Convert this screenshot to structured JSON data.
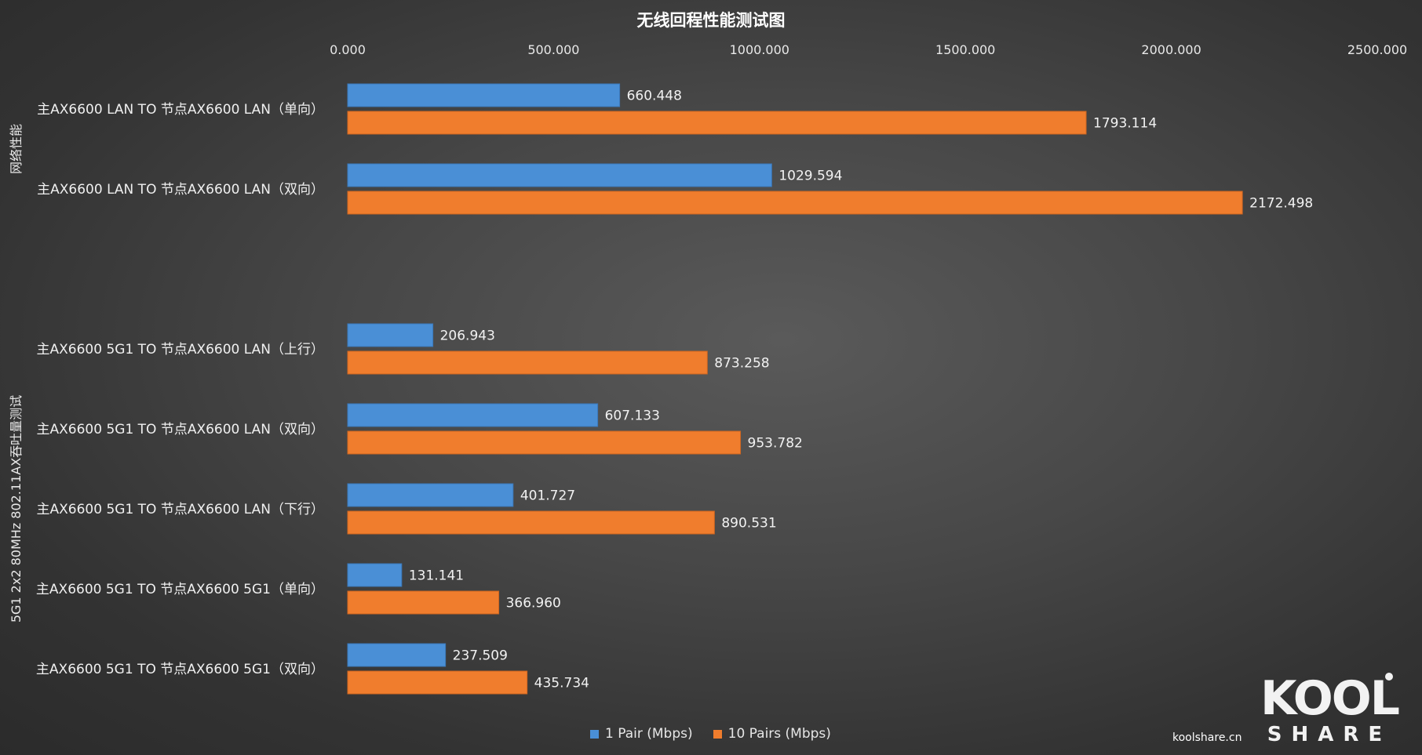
{
  "chart_data": {
    "type": "bar",
    "orientation": "horizontal",
    "title": "无线回程性能测试图",
    "xlim": [
      0,
      2500
    ],
    "x_ticks": [
      "0.000",
      "500.000",
      "1000.000",
      "1500.000",
      "2000.000",
      "2500.000"
    ],
    "groups": [
      {
        "label": "网络性能",
        "categories": [
          0,
          1
        ]
      },
      {
        "label": "5G1 2x2 80MHz 802.11AX吞吐量测试",
        "categories": [
          2,
          3,
          4,
          5,
          6
        ]
      }
    ],
    "categories": [
      "主AX6600 LAN TO 节点AX6600 LAN（单向）",
      "主AX6600 LAN TO 节点AX6600 LAN（双向）",
      "主AX6600 5G1 TO 节点AX6600 LAN（上行）",
      "主AX6600 5G1 TO 节点AX6600 LAN（双向）",
      "主AX6600 5G1 TO 节点AX6600 LAN（下行）",
      "主AX6600 5G1 TO 节点AX6600 5G1（单向）",
      "主AX6600 5G1 TO 节点AX6600 5G1（双向）"
    ],
    "series": [
      {
        "name": "1  Pair  (Mbps)",
        "color": "#4a8fd6",
        "values": [
          660.448,
          1029.594,
          206.943,
          607.133,
          401.727,
          131.141,
          237.509
        ],
        "labels": [
          "660.448",
          "1029.594",
          "206.943",
          "607.133",
          "401.727",
          "131.141",
          "237.509"
        ]
      },
      {
        "name": "10  Pairs  (Mbps)",
        "color": "#f07d2d",
        "values": [
          1793.114,
          2172.498,
          873.258,
          953.782,
          890.531,
          366.96,
          435.734
        ],
        "labels": [
          "1793.114",
          "2172.498",
          "873.258",
          "953.782",
          "890.531",
          "366.960",
          "435.734"
        ]
      }
    ],
    "legend_position": "bottom",
    "grid": false
  },
  "watermark": {
    "logo_top": "KOOL",
    "logo_bottom": "SHARE",
    "site": "koolshare.cn"
  }
}
